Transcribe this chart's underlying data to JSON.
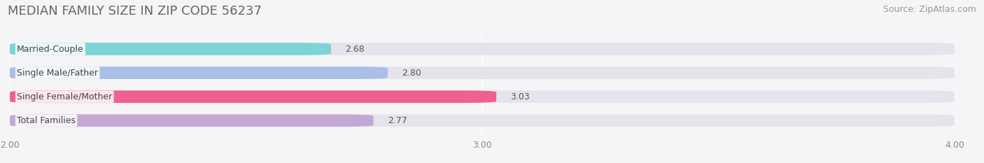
{
  "title": "MEDIAN FAMILY SIZE IN ZIP CODE 56237",
  "source": "Source: ZipAtlas.com",
  "categories": [
    "Married-Couple",
    "Single Male/Father",
    "Single Female/Mother",
    "Total Families"
  ],
  "values": [
    2.68,
    2.8,
    3.03,
    2.77
  ],
  "bar_colors": [
    "#7dd4d4",
    "#aabee8",
    "#f06090",
    "#c4a8d4"
  ],
  "xlim": [
    2.0,
    4.0
  ],
  "xticks": [
    2.0,
    3.0,
    4.0
  ],
  "xtick_labels": [
    "2.00",
    "3.00",
    "4.00"
  ],
  "background_color": "#f5f5f8",
  "bar_background_color": "#e4e4ec",
  "title_fontsize": 13,
  "source_fontsize": 9,
  "label_fontsize": 9,
  "value_fontsize": 9
}
